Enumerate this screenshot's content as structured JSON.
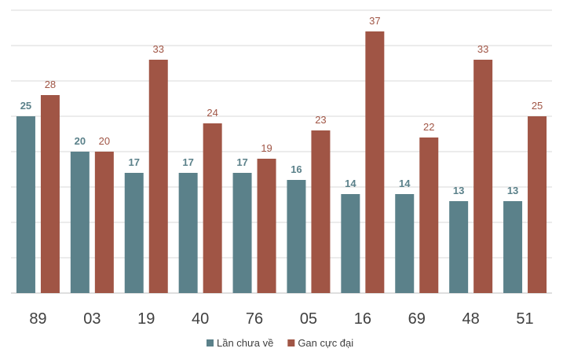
{
  "chart_data": {
    "type": "bar",
    "title": "",
    "xlabel": "",
    "ylabel": "",
    "ylim": [
      0,
      40
    ],
    "grid": true,
    "legend_position": "bottom",
    "categories": [
      "89",
      "03",
      "19",
      "40",
      "76",
      "05",
      "16",
      "69",
      "48",
      "51"
    ],
    "series": [
      {
        "name": "Lần chưa về",
        "color": "#5b818a",
        "label_color": "#5b818a",
        "values": [
          25,
          20,
          17,
          17,
          17,
          16,
          14,
          14,
          13,
          13
        ]
      },
      {
        "name": "Gan cực đại",
        "color": "#a05545",
        "label_color": "#a05545",
        "values": [
          28,
          20,
          33,
          24,
          19,
          23,
          37,
          22,
          33,
          25
        ]
      }
    ]
  }
}
